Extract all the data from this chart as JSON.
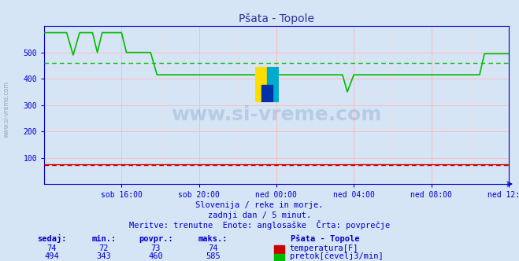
{
  "title": "Pšata - Topole",
  "bg_color": "#d5e5f5",
  "plot_bg_color": "#ffffff",
  "xlabel_ticks": [
    "sob 16:00",
    "sob 20:00",
    "ned 00:00",
    "ned 04:00",
    "ned 08:00",
    "ned 12:00"
  ],
  "ylim": [
    0,
    600
  ],
  "xlim": [
    0,
    288
  ],
  "watermark_text": "www.si-vreme.com",
  "subtitle1": "Slovenija / reke in morje.",
  "subtitle2": "zadnji dan / 5 minut.",
  "subtitle3": "Meritve: trenutne  Enote: anglosaške  Črta: povprečje",
  "legend_title": "Pšata - Topole",
  "legend_items": [
    {
      "color": "#cc0000",
      "label": "temperatura[F]"
    },
    {
      "color": "#00bb00",
      "label": "pretok[čevelj3/min]"
    }
  ],
  "stats_headers": [
    "sedaj:",
    "min.:",
    "povpr.:",
    "maks.:"
  ],
  "stats_rows": [
    [
      74,
      72,
      73,
      74
    ],
    [
      494,
      343,
      460,
      585
    ]
  ],
  "avg_flow": 460,
  "avg_temp": 73,
  "flow_color": "#00bb00",
  "temp_color": "#cc0000",
  "axis_color": "#0000cc",
  "text_color": "#0000cc",
  "title_color": "#333399",
  "grid_h_color": "#ffbbbb",
  "grid_v_color": "#ffbbbb",
  "grid_dot_color": "#ffdddd",
  "sidebar_text": "www.si-vreme.com"
}
